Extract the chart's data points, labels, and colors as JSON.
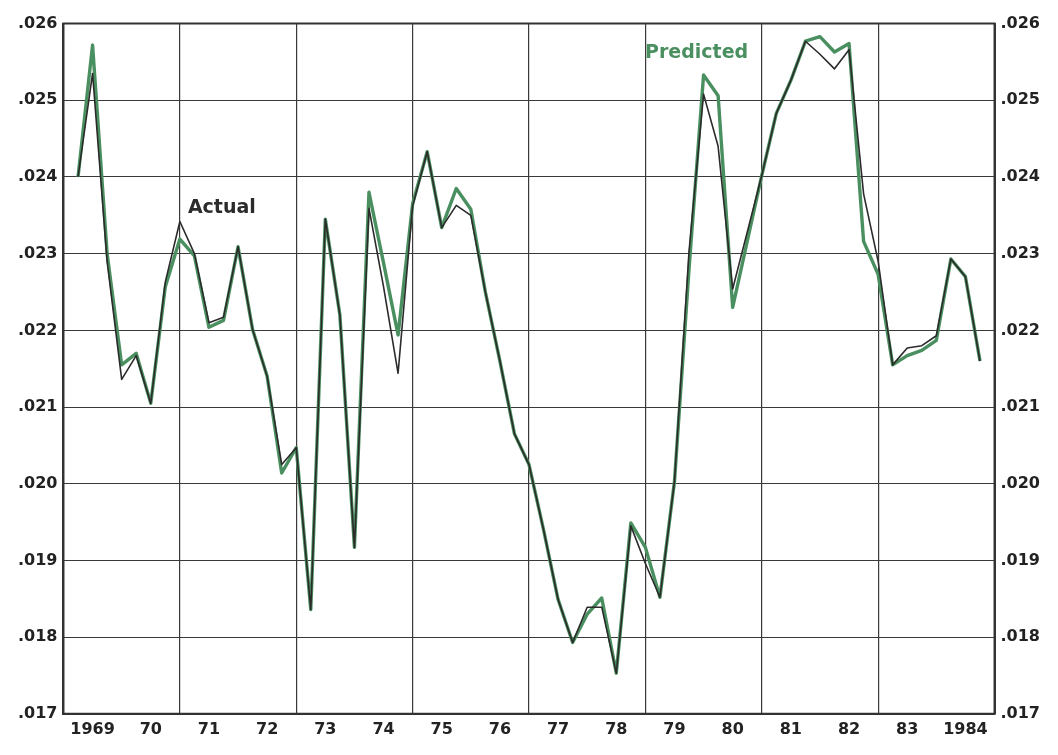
{
  "chart_data": {
    "type": "line",
    "x": [
      "1969-04",
      "1969-07",
      "1969-10",
      "1970-01",
      "1970-04",
      "1970-07",
      "1970-10",
      "1971-01",
      "1971-04",
      "1971-07",
      "1971-10",
      "1972-01",
      "1972-04",
      "1972-07",
      "1972-10",
      "1973-01",
      "1973-04",
      "1973-07",
      "1973-10",
      "1974-01",
      "1974-04",
      "1974-07",
      "1974-10",
      "1975-01",
      "1975-04",
      "1975-07",
      "1975-10",
      "1976-01",
      "1976-04",
      "1976-07",
      "1976-10",
      "1977-01",
      "1977-04",
      "1977-07",
      "1977-10",
      "1978-01",
      "1978-04",
      "1978-07",
      "1978-10",
      "1979-01",
      "1979-04",
      "1979-07",
      "1979-10",
      "1980-01",
      "1980-04",
      "1980-07",
      "1980-10",
      "1981-01",
      "1981-04",
      "1981-07",
      "1981-10",
      "1982-01",
      "1982-04",
      "1982-07",
      "1982-10",
      "1983-01",
      "1983-04",
      "1983-07",
      "1983-10",
      "1984-01",
      "1984-04",
      "1984-07",
      "1984-10"
    ],
    "series": [
      {
        "name": "Actual",
        "color": "#2b2b2b",
        "values": [
          0.024,
          0.02535,
          0.0229,
          0.02136,
          0.02167,
          0.02105,
          0.02263,
          0.02342,
          0.023,
          0.0221,
          0.02217,
          0.02309,
          0.02201,
          0.0214,
          0.02025,
          0.02047,
          0.01836,
          0.02345,
          0.0222,
          0.01917,
          0.02359,
          0.02257,
          0.02144,
          0.02362,
          0.02433,
          0.02334,
          0.02363,
          0.0235,
          0.0225,
          0.0216,
          0.02065,
          0.02025,
          0.0194,
          0.01849,
          0.01793,
          0.01839,
          0.01839,
          0.01753,
          0.01945,
          0.01896,
          0.01852,
          0.02003,
          0.02303,
          0.02508,
          0.0244,
          0.02254,
          0.02328,
          0.02402,
          0.02483,
          0.02526,
          0.02577,
          0.0256,
          0.02541,
          0.02566,
          0.02378,
          0.0229,
          0.02155,
          0.02177,
          0.0218,
          0.02193,
          0.02293,
          0.0227,
          0.0216
        ]
      },
      {
        "name": "Predicted",
        "color": "#4a8f5f",
        "values": [
          0.024,
          0.02572,
          0.023,
          0.02155,
          0.0217,
          0.02105,
          0.02257,
          0.02319,
          0.02297,
          0.02204,
          0.02213,
          0.02309,
          0.02201,
          0.0214,
          0.02014,
          0.02047,
          0.01836,
          0.02345,
          0.0222,
          0.01917,
          0.0238,
          0.02288,
          0.02194,
          0.02365,
          0.02433,
          0.02334,
          0.02385,
          0.02358,
          0.0225,
          0.0216,
          0.02065,
          0.02025,
          0.0194,
          0.01849,
          0.01793,
          0.0183,
          0.01851,
          0.01753,
          0.01949,
          0.01917,
          0.01852,
          0.02003,
          0.0228,
          0.02533,
          0.02506,
          0.0223,
          0.02316,
          0.02402,
          0.02483,
          0.02526,
          0.02577,
          0.02583,
          0.02563,
          0.02574,
          0.02316,
          0.02273,
          0.02155,
          0.02167,
          0.02174,
          0.02187,
          0.02293,
          0.0227,
          0.0216
        ]
      }
    ],
    "xlim": [
      "1969-01",
      "1985-01"
    ],
    "xticks": [
      {
        "value": "1969-07",
        "label": "1969"
      },
      {
        "value": "1970-07",
        "label": "70"
      },
      {
        "value": "1971-01",
        "label": null
      },
      {
        "value": "1971-07",
        "label": "71"
      },
      {
        "value": "1972-07",
        "label": "72"
      },
      {
        "value": "1973-01",
        "label": null
      },
      {
        "value": "1973-07",
        "label": "73"
      },
      {
        "value": "1974-07",
        "label": "74"
      },
      {
        "value": "1975-01",
        "label": null
      },
      {
        "value": "1975-07",
        "label": "75"
      },
      {
        "value": "1976-07",
        "label": "76"
      },
      {
        "value": "1977-01",
        "label": null
      },
      {
        "value": "1977-07",
        "label": "77"
      },
      {
        "value": "1978-07",
        "label": "78"
      },
      {
        "value": "1979-01",
        "label": null
      },
      {
        "value": "1979-07",
        "label": "79"
      },
      {
        "value": "1980-07",
        "label": "80"
      },
      {
        "value": "1981-01",
        "label": null
      },
      {
        "value": "1981-07",
        "label": "81"
      },
      {
        "value": "1982-07",
        "label": "82"
      },
      {
        "value": "1983-01",
        "label": null
      },
      {
        "value": "1983-07",
        "label": "83"
      },
      {
        "value": "1984-07",
        "label": "1984"
      }
    ],
    "ylim": [
      0.017,
      0.026
    ],
    "yticks": [
      {
        "value": 0.017,
        "label": ".017"
      },
      {
        "value": 0.018,
        "label": ".018"
      },
      {
        "value": 0.019,
        "label": ".019"
      },
      {
        "value": 0.02,
        "label": ".020"
      },
      {
        "value": 0.021,
        "label": ".021"
      },
      {
        "value": 0.022,
        "label": ".022"
      },
      {
        "value": 0.023,
        "label": ".023"
      },
      {
        "value": 0.024,
        "label": ".024"
      },
      {
        "value": 0.025,
        "label": ".025"
      },
      {
        "value": 0.026,
        "label": ".026"
      }
    ],
    "y2lim": [
      0.017,
      0.026
    ],
    "y2ticks": [
      {
        "value": 0.017,
        "label": ".017"
      },
      {
        "value": 0.018,
        "label": ".018"
      },
      {
        "value": 0.019,
        "label": ".019"
      },
      {
        "value": 0.02,
        "label": ".020"
      },
      {
        "value": 0.021,
        "label": ".021"
      },
      {
        "value": 0.022,
        "label": ".022"
      },
      {
        "value": 0.023,
        "label": ".023"
      },
      {
        "value": 0.024,
        "label": ".024"
      },
      {
        "value": 0.025,
        "label": ".025"
      },
      {
        "value": 0.026,
        "label": ".026"
      }
    ],
    "grid": true,
    "legend": false,
    "line_style": "solid"
  }
}
